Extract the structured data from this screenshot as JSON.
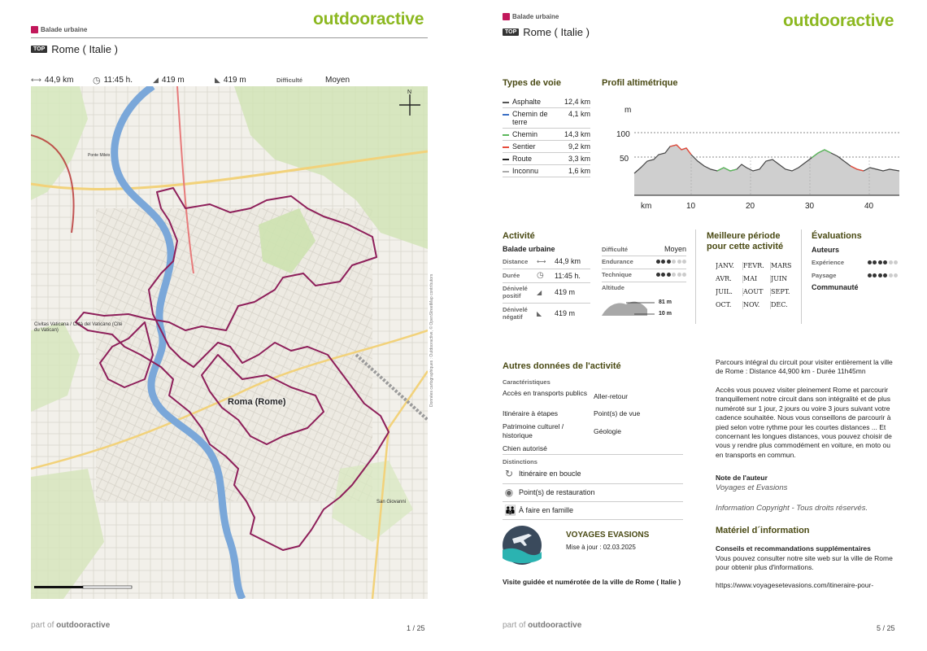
{
  "left_page": {
    "brand": "outdooractive",
    "type_label": "Balade urbaine",
    "top_badge": "TOP",
    "title": "Rome ( Italie )",
    "stats": {
      "distance": "44,9 km",
      "duration": "11:45 h.",
      "ascent": "419 m",
      "descent": "419 m",
      "difficulty_label": "Difficulté",
      "difficulty_value": "Moyen"
    },
    "map": {
      "label_city": "Roma (Rome)",
      "label_vatican": "Civitas Vaticana / Città del Vaticano (Cité du Vatican)",
      "label_san_giovanni": "San Giovanni",
      "label_ponte": "Ponte Milvio",
      "copyright": "Données cartographiques : Outdooractive, © OpenStreetMap contributors"
    },
    "footer_part": "part of",
    "footer_brand": "outdooractive",
    "page_number": "1 / 25"
  },
  "right_page": {
    "brand": "outdooractive",
    "type_label": "Balade urbaine",
    "top_badge": "TOP",
    "title": "Rome ( Italie )",
    "way_types": {
      "title": "Types de voie",
      "rows": [
        {
          "name": "Asphalte",
          "value": "12,4 km",
          "color": "#555555"
        },
        {
          "name": "Chemin de terre",
          "value": "4,1 km",
          "color": "#3a6fc4"
        },
        {
          "name": "Chemin",
          "value": "14,3 km",
          "color": "#5cb85c"
        },
        {
          "name": "Sentier",
          "value": "9,2 km",
          "color": "#e74c3c"
        },
        {
          "name": "Route",
          "value": "3,3 km",
          "color": "#222222"
        },
        {
          "name": "Inconnu",
          "value": "1,6 km",
          "color": "#aaaaaa"
        }
      ]
    },
    "profile": {
      "title": "Profil altimétrique",
      "y_unit": "m",
      "y_ticks": [
        "100",
        "50"
      ],
      "x_unit": "km",
      "x_ticks": [
        "10",
        "20",
        "30",
        "40"
      ]
    },
    "activity": {
      "title": "Activité",
      "subtitle": "Balade urbaine",
      "distance_label": "Distance",
      "distance_value": "44,9  km",
      "duration_label": "Durée",
      "duration_value": "11:45  h.",
      "ascent_label": "Dénivelé positif",
      "ascent_value": "419  m",
      "descent_label": "Dénivelé négatif",
      "descent_value": "419  m",
      "difficulty_label": "Difficulté",
      "difficulty_value": "Moyen",
      "endurance_label": "Endurance",
      "endurance_level": 3,
      "technique_label": "Technique",
      "technique_level": 3,
      "altitude_label": "Altitude",
      "altitude_max": "81 m",
      "altitude_min": "10 m"
    },
    "best_period": {
      "title": "Meilleure période pour cette activité",
      "months": [
        "JANV.",
        "FÉVR.",
        "MARS",
        "AVR.",
        "MAI",
        "JUIN",
        "JUIL.",
        "AOÛT",
        "SEPT.",
        "OCT.",
        "NOV.",
        "DÉC."
      ]
    },
    "ratings": {
      "title": "Évaluations",
      "authors": "Auteurs",
      "experience_label": "Expérience",
      "experience_level": 4,
      "landscape_label": "Paysage",
      "landscape_level": 4,
      "community": "Communauté"
    },
    "other": {
      "title": "Autres données de l'activité",
      "characteristics_label": "Caractéristiques",
      "characteristics": [
        "Accès en transports publics",
        "Aller-retour",
        "Itinéraire à étapes",
        "Point(s) de vue",
        "Patrimoine culturel / historique",
        "Géologie",
        "Chien autorisé"
      ],
      "distinctions_label": "Distinctions",
      "distinctions": [
        {
          "icon": "loop-icon",
          "label": "Itinéraire en boucle"
        },
        {
          "icon": "restaurant-icon",
          "label": "Point(s) de restauration"
        },
        {
          "icon": "family-icon",
          "label": "À faire en famille"
        }
      ]
    },
    "author": {
      "name": "VOYAGES EVASIONS",
      "updated": "Mise à jour : 02.03.2025",
      "caption": "Visite guidée et numérotée de la ville de Rome ( Italie )"
    },
    "description": {
      "p1": "Parcours intégral du circuit pour visiter entièrement la ville de Rome : Distance 44,900 km - Durée 11h45mn",
      "p2": "Accès vous pouvez visiter pleinement Rome et parcourir tranquillement notre circuit dans son intégralité et de plus numéroté sur 1 jour, 2 jours ou voire 3 jours suivant votre cadence souhaitée. Nous vous conseillons de parcourir à pied selon votre rythme pour les courtes distances ... Et concernant les longues distances, vous pouvez choisir de vous y rendre plus commodément en voiture, en moto ou en transports en commun.",
      "author_note_label": "Note de l'auteur",
      "author_note": "Voyages et Evasions",
      "copyright": "Information Copyright - Tous droits réservés.",
      "material_title": "Matériel d´information",
      "advice_title": "Conseils et recommandations supplémentaires",
      "advice": "Vous pouvez consulter notre site web sur la ville de Rome pour obtenir plus d'informations.",
      "url": "https://www.voyagesetevasions.com/itineraire-pour-"
    },
    "footer_part": "part of",
    "footer_brand": "outdooractive",
    "page_number": "5 / 25"
  },
  "colors": {
    "brand": "#8cb820",
    "route": "#8e1f5a",
    "river": "#7aa7d9",
    "section_title": "#4a4a14"
  }
}
